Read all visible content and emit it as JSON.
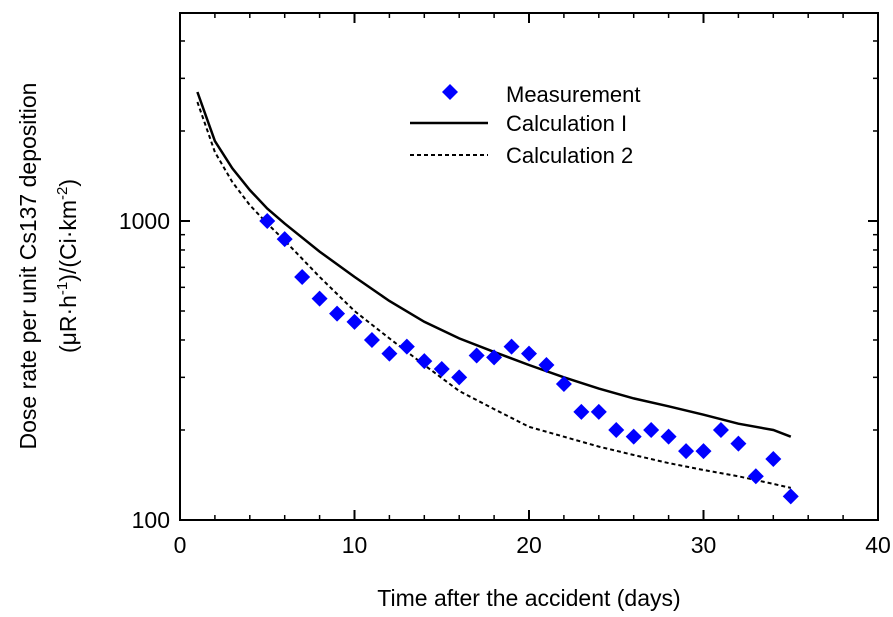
{
  "chart_data": {
    "type": "scatter",
    "xlabel": "Time after the accident (days)",
    "ylabel": {
      "line1": "Dose rate per unit Cs137 deposition",
      "line2_pre": "(μR·h",
      "line2_exp1": "-1",
      "line2_mid": ")/(Ci·km",
      "line2_exp2": "-2",
      "line2_post": ")"
    },
    "xlim": [
      0,
      40
    ],
    "ylim": [
      100,
      5000
    ],
    "yscale": "log",
    "x_ticks": [
      0,
      10,
      20,
      30,
      40
    ],
    "x_tick_labels": [
      "0",
      "10",
      "20",
      "30",
      "40"
    ],
    "y_major_ticks": [
      100,
      1000
    ],
    "y_tick_labels": [
      "100",
      "1000"
    ],
    "grid": false,
    "legend_position": "top-center",
    "series": [
      {
        "name": "Measurement",
        "kind": "marker",
        "marker": "diamond",
        "color": "#0000FF",
        "x": [
          5,
          6,
          7,
          8,
          9,
          10,
          11,
          12,
          13,
          14,
          15,
          16,
          17,
          18,
          19,
          20,
          21,
          22,
          23,
          24,
          25,
          26,
          27,
          28,
          29,
          30,
          31,
          32,
          33,
          34,
          35
        ],
        "y": [
          1000,
          870,
          650,
          550,
          490,
          460,
          400,
          360,
          380,
          340,
          320,
          300,
          355,
          350,
          380,
          360,
          330,
          285,
          230,
          230,
          200,
          190,
          200,
          190,
          170,
          170,
          200,
          180,
          140,
          160,
          120
        ]
      },
      {
        "name": "Calculation I",
        "kind": "line",
        "dash": "solid",
        "color": "#000000",
        "x": [
          1,
          2,
          3,
          4,
          5,
          6,
          8,
          10,
          12,
          14,
          16,
          18,
          20,
          22,
          24,
          26,
          28,
          30,
          32,
          34,
          35
        ],
        "y": [
          2700,
          1850,
          1500,
          1270,
          1100,
          980,
          790,
          650,
          540,
          460,
          405,
          365,
          330,
          300,
          275,
          255,
          240,
          225,
          210,
          200,
          190
        ]
      },
      {
        "name": "Calculation 2",
        "kind": "line",
        "dash": "dashed",
        "color": "#000000",
        "x": [
          1,
          2,
          3,
          4,
          5,
          6,
          8,
          10,
          12,
          14,
          16,
          18,
          20,
          22,
          24,
          26,
          28,
          30,
          32,
          34,
          35
        ],
        "y": [
          2500,
          1700,
          1350,
          1130,
          980,
          860,
          650,
          500,
          405,
          330,
          270,
          235,
          205,
          190,
          176,
          165,
          155,
          147,
          140,
          132,
          128
        ]
      }
    ]
  }
}
